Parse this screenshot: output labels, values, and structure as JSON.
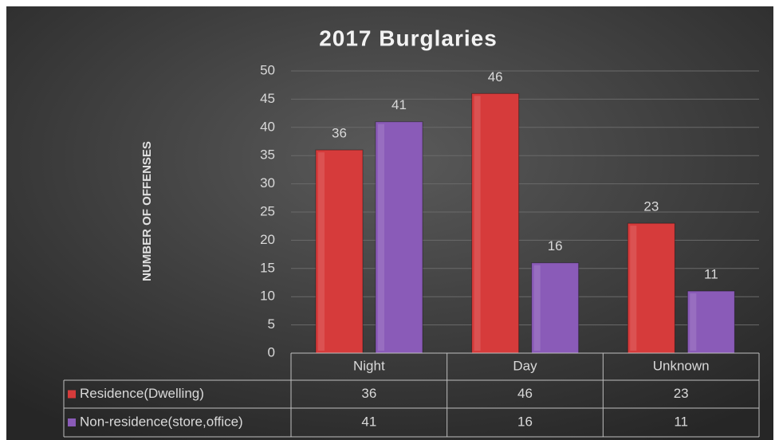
{
  "chart_data": {
    "type": "bar",
    "title": "2017 Burglaries",
    "y_label": "NUMBER OF OFFENSES",
    "categories": [
      "Night",
      "Day",
      "Unknown"
    ],
    "series": [
      {
        "name": "Residence(Dwelling)",
        "color": "#d63b3b",
        "values": [
          36,
          46,
          23
        ]
      },
      {
        "name": "Non-residence(store,office)",
        "color": "#8a5bb8",
        "values": [
          41,
          16,
          11
        ]
      }
    ],
    "ylim": [
      0,
      50
    ],
    "yticks": [
      0,
      5,
      10,
      15,
      20,
      25,
      30,
      35,
      40,
      45,
      50
    ],
    "grid": true,
    "data_table": true
  }
}
